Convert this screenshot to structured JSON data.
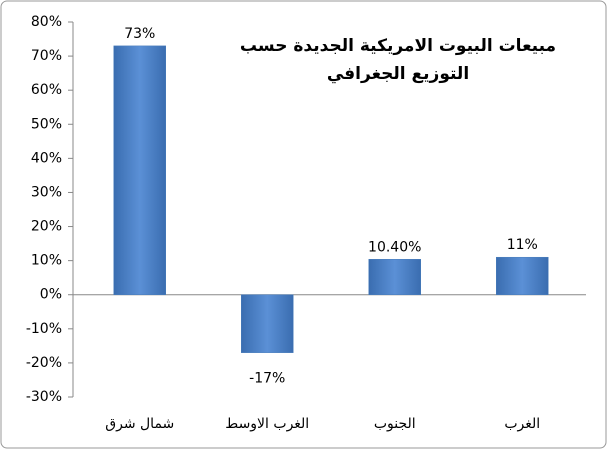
{
  "chart_data": {
    "type": "bar",
    "title": [
      "مبيعات البيوت الامريكية الجديدة حسب",
      "التوزيع الجغرافي"
    ],
    "categories": [
      "شمال شرق",
      "الغرب الاوسط",
      "الجنوب",
      "الغرب"
    ],
    "values": [
      73,
      -17,
      10.4,
      11
    ],
    "value_labels": [
      "73%",
      "-17%",
      "10.40%",
      "11%"
    ],
    "color": "#4a7ebb",
    "ylim": [
      -30,
      80
    ],
    "yticks": [
      {
        "value": -30,
        "label": "-30%"
      },
      {
        "value": -20,
        "label": "-20%"
      },
      {
        "value": -10,
        "label": "-10%"
      },
      {
        "value": 0,
        "label": "0%"
      },
      {
        "value": 10,
        "label": "10%"
      },
      {
        "value": 20,
        "label": "20%"
      },
      {
        "value": 30,
        "label": "30%"
      },
      {
        "value": 40,
        "label": "40%"
      },
      {
        "value": 50,
        "label": "50%"
      },
      {
        "value": 60,
        "label": "60%"
      },
      {
        "value": 70,
        "label": "70%"
      },
      {
        "value": 80,
        "label": "80%"
      }
    ]
  }
}
